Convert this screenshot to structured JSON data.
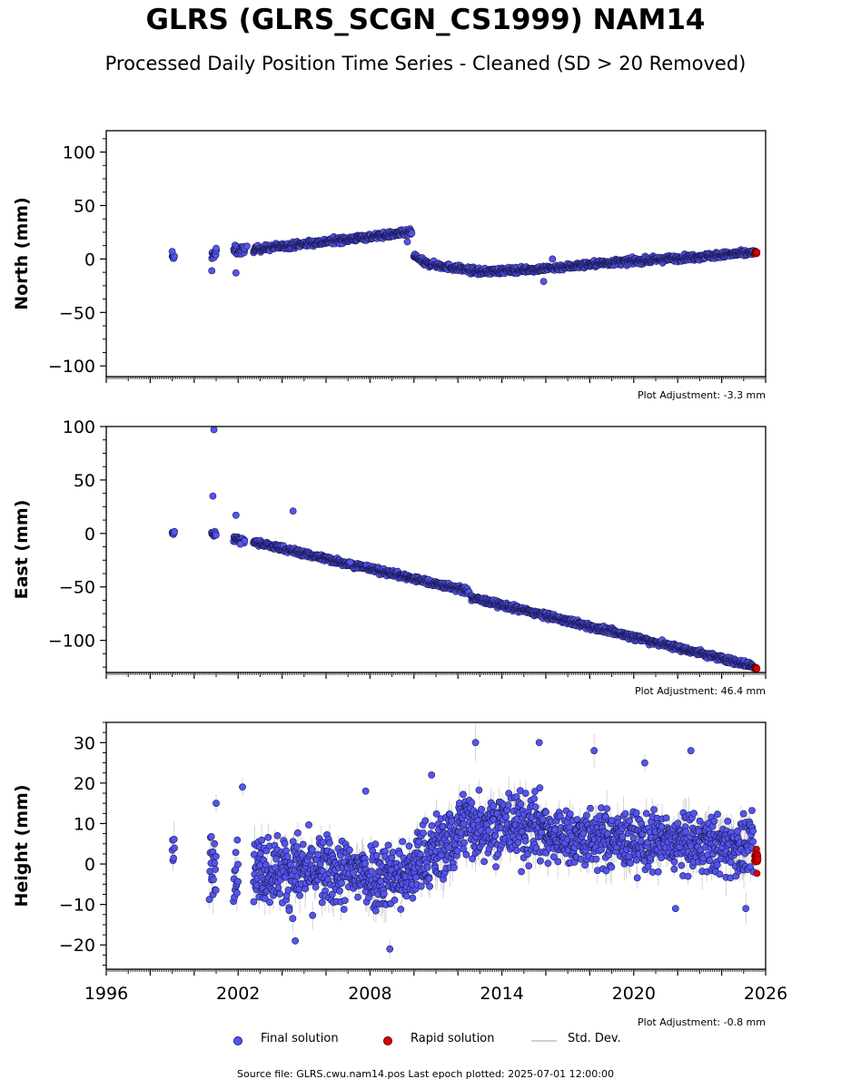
{
  "title": "GLRS (GLRS_SCGN_CS1999) NAM14",
  "subtitle": "Processed Daily Position Time Series - Cleaned (SD > 20 Removed)",
  "legend": {
    "final": "Final solution",
    "rapid": "Rapid solution",
    "std": "Std. Dev."
  },
  "footer": "Source file: GLRS.cwu.nam14.pos  Last epoch plotted: 2025-07-01 12:00:00",
  "colors": {
    "final_fill": "#5555ee",
    "final_edge": "#1a1a55",
    "rapid_fill": "#dd0000",
    "std_line": "#888888"
  },
  "chart_data": [
    {
      "type": "scatter",
      "ylabel": "North (mm)",
      "xlim": [
        1996,
        2026
      ],
      "ylim": [
        -110,
        120
      ],
      "yticks": [
        -100,
        -50,
        0,
        50,
        100
      ],
      "adjustment": "Plot Adjustment: -3.3 mm",
      "final_segments": [
        {
          "x": [
            1999.0,
            1999.1
          ],
          "y": [
            1,
            1
          ],
          "scatter": 2
        },
        {
          "x": [
            2000.8,
            2001.0
          ],
          "y": [
            4,
            5
          ],
          "scatter": 3
        },
        {
          "x": [
            2001.8,
            2002.3
          ],
          "y": [
            8,
            8
          ],
          "scatter": 3
        },
        {
          "x": [
            2002.7,
            2009.9
          ],
          "y": [
            9,
            25
          ],
          "scatter": 2
        },
        {
          "x": [
            2010.0,
            2010.5
          ],
          "y": [
            3,
            -4
          ],
          "scatter": 2
        },
        {
          "x": [
            2010.5,
            2013.0
          ],
          "y": [
            -4,
            -12
          ],
          "scatter": 2
        },
        {
          "x": [
            2013.0,
            2016.0
          ],
          "y": [
            -12,
            -9
          ],
          "scatter": 2
        },
        {
          "x": [
            2016.0,
            2018.5
          ],
          "y": [
            -9,
            -4
          ],
          "scatter": 2
        },
        {
          "x": [
            2018.5,
            2021.5
          ],
          "y": [
            -4,
            0
          ],
          "scatter": 2
        },
        {
          "x": [
            2021.5,
            2025.45
          ],
          "y": [
            0,
            6
          ],
          "scatter": 2
        }
      ],
      "final_outliers": [
        {
          "x": 1999.0,
          "y": 7
        },
        {
          "x": 2000.8,
          "y": -11
        },
        {
          "x": 2001.9,
          "y": -13
        },
        {
          "x": 2009.7,
          "y": 16
        },
        {
          "x": 2015.9,
          "y": -21
        },
        {
          "x": 2016.3,
          "y": 0
        },
        {
          "x": 2001.0,
          "y": 10
        },
        {
          "x": 2002.4,
          "y": 12
        }
      ],
      "rapid_segments": [
        {
          "x": [
            2025.5,
            2025.6
          ],
          "y": [
            6,
            6
          ],
          "scatter": 1
        }
      ]
    },
    {
      "type": "scatter",
      "ylabel": "East (mm)",
      "xlim": [
        1996,
        2026
      ],
      "ylim": [
        -130,
        100
      ],
      "yticks": [
        -100,
        -50,
        0,
        50,
        100
      ],
      "adjustment": "Plot Adjustment: 46.4 mm",
      "final_segments": [
        {
          "x": [
            1999.0,
            1999.1
          ],
          "y": [
            1,
            1
          ],
          "scatter": 1.5
        },
        {
          "x": [
            2000.8,
            2001.0
          ],
          "y": [
            0,
            0
          ],
          "scatter": 2
        },
        {
          "x": [
            2001.8,
            2002.3
          ],
          "y": [
            -5,
            -7
          ],
          "scatter": 2
        },
        {
          "x": [
            2002.7,
            2012.5
          ],
          "y": [
            -8,
            -54
          ],
          "scatter": 2
        },
        {
          "x": [
            2012.6,
            2025.45
          ],
          "y": [
            -60,
            -124
          ],
          "scatter": 2
        }
      ],
      "final_outliers": [
        {
          "x": 2000.9,
          "y": 97
        },
        {
          "x": 2000.85,
          "y": 35
        },
        {
          "x": 2001.9,
          "y": 17
        },
        {
          "x": 2004.5,
          "y": 21
        },
        {
          "x": 2007.1,
          "y": -27
        },
        {
          "x": 2002.1,
          "y": -10
        }
      ],
      "rapid_segments": [
        {
          "x": [
            2025.5,
            2025.6
          ],
          "y": [
            -125,
            -126
          ],
          "scatter": 1
        }
      ]
    },
    {
      "type": "scatter",
      "ylabel": "Height (mm)",
      "xlim": [
        1996,
        2026
      ],
      "ylim": [
        -26,
        35
      ],
      "yticks": [
        -20,
        -10,
        0,
        10,
        20,
        30
      ],
      "adjustment": "Plot Adjustment: -0.8 mm",
      "final_segments": [
        {
          "x": [
            1999.0,
            1999.1
          ],
          "y": [
            2,
            2
          ],
          "scatter": 4
        },
        {
          "x": [
            2000.7,
            2001.0
          ],
          "y": [
            0,
            0
          ],
          "scatter": 6
        },
        {
          "x": [
            2001.8,
            2002.0
          ],
          "y": [
            -1,
            -1
          ],
          "scatter": 5
        },
        {
          "x": [
            2002.7,
            2010.0
          ],
          "y": [
            -1,
            -3
          ],
          "scatter": 6
        },
        {
          "x": [
            2010.0,
            2012.0
          ],
          "y": [
            0,
            7
          ],
          "scatter": 6
        },
        {
          "x": [
            2012.0,
            2016.0
          ],
          "y": [
            10,
            9
          ],
          "scatter": 6
        },
        {
          "x": [
            2016.0,
            2025.45
          ],
          "y": [
            7,
            4
          ],
          "scatter": 5
        }
      ],
      "final_outliers": [
        {
          "x": 2012.8,
          "y": 30
        },
        {
          "x": 2015.7,
          "y": 30
        },
        {
          "x": 2002.2,
          "y": 19
        },
        {
          "x": 2007.8,
          "y": 18
        },
        {
          "x": 2018.2,
          "y": 28
        },
        {
          "x": 2022.6,
          "y": 28
        },
        {
          "x": 2008.9,
          "y": -21
        },
        {
          "x": 2010.8,
          "y": 22
        },
        {
          "x": 2001.0,
          "y": 15
        },
        {
          "x": 2004.6,
          "y": -19
        },
        {
          "x": 2020.5,
          "y": 25
        },
        {
          "x": 2021.9,
          "y": -11
        },
        {
          "x": 2025.1,
          "y": -11
        }
      ],
      "rapid_segments": [
        {
          "x": [
            2025.5,
            2025.65
          ],
          "y": [
            1,
            1
          ],
          "scatter": 3.5
        }
      ]
    }
  ]
}
